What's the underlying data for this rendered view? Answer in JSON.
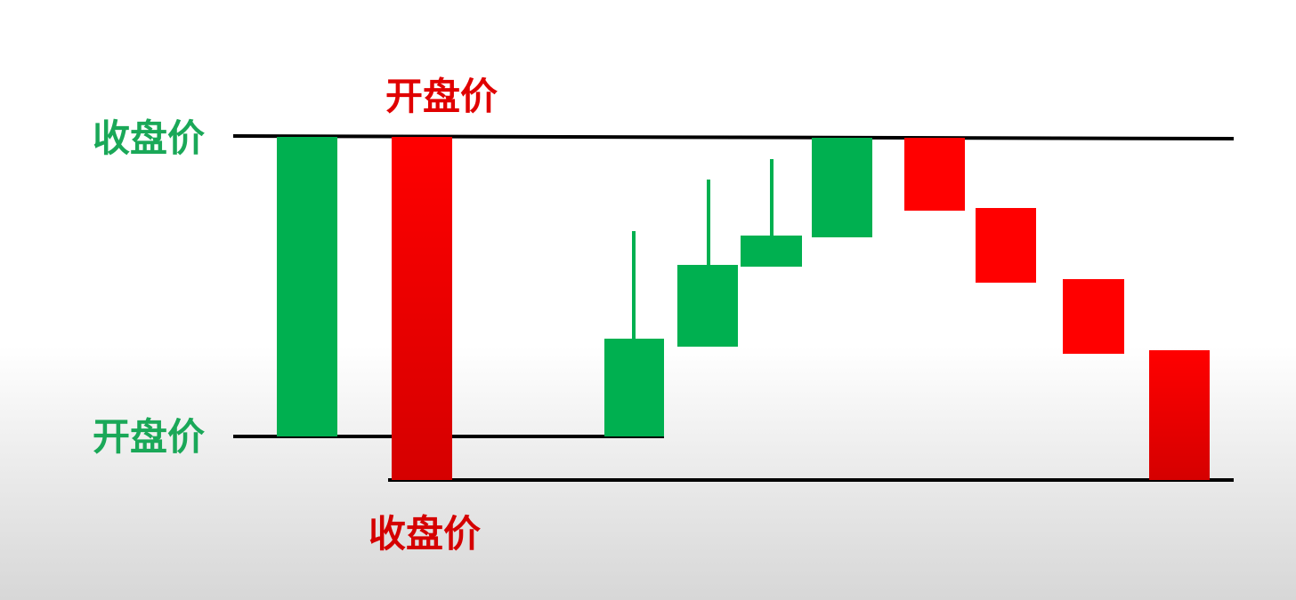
{
  "labels": {
    "green_close": "收盘价",
    "green_open": "开盘价",
    "red_open": "开盘价",
    "red_close": "收盘价"
  },
  "colors": {
    "up": "#00b050",
    "down_top": "#ff0000",
    "down_bottom": "#d50000",
    "green_text": "#1aa858",
    "red_text": "#e00000",
    "line": "#000000"
  },
  "chart_data": {
    "type": "candlestick",
    "description_candles": [
      {
        "id": "example-up",
        "direction": "up",
        "open": 0,
        "close": 100
      },
      {
        "id": "example-down",
        "direction": "down",
        "open": 100,
        "close": -14
      }
    ],
    "sequence_candles": [
      {
        "direction": "up",
        "open": 0,
        "close": 33,
        "high": 68
      },
      {
        "direction": "up",
        "open": 27,
        "close": 57,
        "high": 86
      },
      {
        "direction": "up",
        "open": 57,
        "close": 67,
        "high": 94
      },
      {
        "direction": "up",
        "open": 67,
        "close": 100,
        "high": 100
      },
      {
        "direction": "down",
        "open": 100,
        "close": 76,
        "high": 100
      },
      {
        "direction": "down",
        "open": 76,
        "close": 51,
        "high": 76
      },
      {
        "direction": "down",
        "open": 52,
        "close": 28,
        "high": 52
      },
      {
        "direction": "down",
        "open": 28,
        "close": -14,
        "high": 28
      }
    ]
  }
}
